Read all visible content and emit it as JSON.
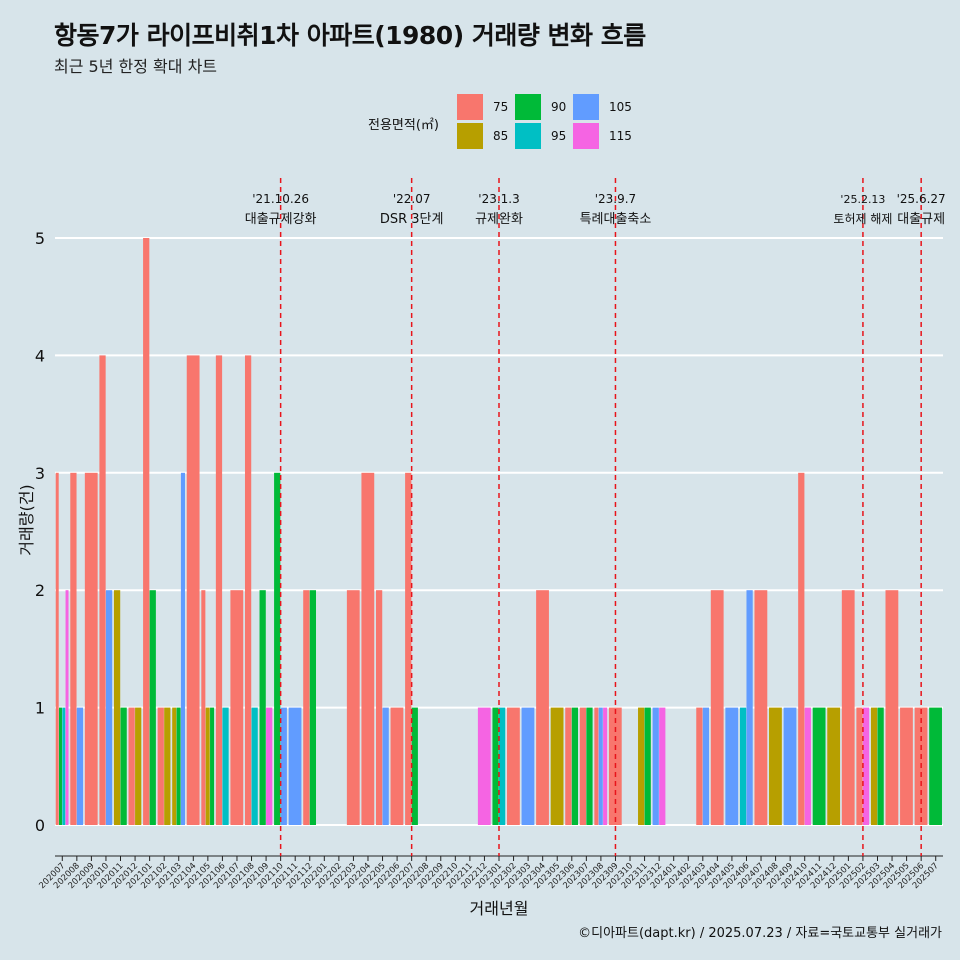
{
  "title": "항동7가 라이프비취1차 아파트(1980) 거래량 변화 흐름",
  "subtitle": "최근 5년 한정 확대 차트",
  "caption": "©디아파트(dapt.kr) / 2025.07.23 / 자료=국토교통부 실거래가",
  "legend": {
    "title": "전용면적(㎡)",
    "items": [
      {
        "label": "75",
        "color": "#f8766d"
      },
      {
        "label": "85",
        "color": "#b79f00"
      },
      {
        "label": "90",
        "color": "#00ba38"
      },
      {
        "label": "95",
        "color": "#00bfc4"
      },
      {
        "label": "105",
        "color": "#619cff"
      },
      {
        "label": "115",
        "color": "#f564e3"
      }
    ]
  },
  "chart_data": {
    "type": "bar",
    "title": "항동7가 라이프비취1차 아파트(1980) 거래량 변화 흐름",
    "subtitle": "최근 5년 한정 확대 차트",
    "xlabel": "거래년월",
    "ylabel": "거래량(건)",
    "ylim": [
      0,
      5.4
    ],
    "yticks": [
      0,
      1,
      2,
      3,
      4,
      5
    ],
    "categories": [
      "202007",
      "202008",
      "202009",
      "202010",
      "202011",
      "202012",
      "202101",
      "202102",
      "202103",
      "202104",
      "202105",
      "202106",
      "202107",
      "202108",
      "202109",
      "202110",
      "202111",
      "202112",
      "202201",
      "202202",
      "202203",
      "202204",
      "202205",
      "202206",
      "202207",
      "202208",
      "202209",
      "202210",
      "202211",
      "202212",
      "202301",
      "202302",
      "202303",
      "202304",
      "202305",
      "202306",
      "202307",
      "202308",
      "202309",
      "202310",
      "202311",
      "202312",
      "202401",
      "202402",
      "202403",
      "202404",
      "202405",
      "202406",
      "202407",
      "202408",
      "202409",
      "202410",
      "202411",
      "202412",
      "202501",
      "202502",
      "202503",
      "202504",
      "202505",
      "202506",
      "202507"
    ],
    "series": [
      {
        "name": "75",
        "color": "#f8766d",
        "values": [
          3,
          3,
          3,
          4,
          0,
          1,
          5,
          1,
          0,
          4,
          2,
          4,
          2,
          4,
          0,
          0,
          0,
          2,
          0,
          0,
          2,
          3,
          2,
          1,
          3,
          0,
          0,
          0,
          0,
          0,
          0,
          1,
          0,
          2,
          0,
          1,
          1,
          1,
          1,
          0,
          0,
          0,
          0,
          0,
          1,
          2,
          0,
          0,
          2,
          0,
          0,
          3,
          0,
          0,
          2,
          1,
          0,
          2,
          1,
          1,
          0
        ]
      },
      {
        "name": "85",
        "color": "#b79f00",
        "values": [
          0,
          0,
          0,
          0,
          2,
          1,
          0,
          1,
          1,
          0,
          1,
          0,
          0,
          0,
          0,
          0,
          0,
          0,
          0,
          0,
          0,
          0,
          0,
          0,
          0,
          0,
          0,
          0,
          0,
          0,
          0,
          0,
          0,
          0,
          1,
          0,
          0,
          0,
          0,
          0,
          1,
          0,
          0,
          0,
          0,
          0,
          0,
          0,
          0,
          1,
          0,
          0,
          0,
          1,
          0,
          0,
          1,
          0,
          0,
          0,
          0
        ]
      },
      {
        "name": "90",
        "color": "#00ba38",
        "values": [
          1,
          0,
          0,
          0,
          1,
          0,
          2,
          0,
          1,
          0,
          1,
          0,
          0,
          0,
          2,
          3,
          0,
          2,
          0,
          0,
          0,
          0,
          0,
          0,
          1,
          0,
          0,
          0,
          0,
          0,
          1,
          0,
          0,
          0,
          0,
          1,
          1,
          0,
          0,
          0,
          1,
          0,
          0,
          0,
          0,
          0,
          0,
          0,
          0,
          0,
          0,
          0,
          1,
          0,
          0,
          0,
          1,
          0,
          0,
          0,
          1
        ]
      },
      {
        "name": "95",
        "color": "#00bfc4",
        "values": [
          1,
          0,
          0,
          0,
          0,
          0,
          0,
          0,
          0,
          0,
          0,
          1,
          0,
          1,
          0,
          0,
          0,
          0,
          0,
          0,
          0,
          0,
          0,
          0,
          0,
          0,
          0,
          0,
          0,
          0,
          1,
          0,
          0,
          0,
          0,
          0,
          0,
          0,
          0,
          0,
          0,
          0,
          0,
          0,
          0,
          0,
          0,
          1,
          0,
          0,
          0,
          0,
          0,
          0,
          0,
          0,
          0,
          0,
          0,
          0,
          0
        ]
      },
      {
        "name": "105",
        "color": "#619cff",
        "values": [
          0,
          1,
          0,
          2,
          0,
          0,
          0,
          0,
          3,
          0,
          0,
          0,
          0,
          0,
          0,
          1,
          1,
          0,
          0,
          0,
          0,
          0,
          1,
          0,
          0,
          0,
          0,
          0,
          0,
          0,
          0,
          0,
          1,
          0,
          0,
          0,
          0,
          1,
          0,
          0,
          0,
          1,
          0,
          0,
          1,
          0,
          1,
          2,
          0,
          0,
          1,
          0,
          0,
          0,
          0,
          0,
          0,
          0,
          0,
          0,
          0
        ]
      },
      {
        "name": "115",
        "color": "#f564e3",
        "values": [
          2,
          0,
          0,
          0,
          0,
          0,
          0,
          0,
          0,
          0,
          0,
          0,
          0,
          0,
          1,
          0,
          0,
          0,
          0,
          0,
          0,
          0,
          0,
          0,
          0,
          0,
          0,
          0,
          0,
          1,
          0,
          0,
          0,
          0,
          0,
          0,
          0,
          1,
          0,
          0,
          0,
          1,
          0,
          0,
          0,
          0,
          0,
          0,
          0,
          0,
          0,
          1,
          0,
          0,
          0,
          1,
          0,
          0,
          0,
          0,
          0
        ]
      }
    ],
    "annotations": [
      {
        "date": "'21.10.26",
        "text": "대출규제강화",
        "x_month": "202110"
      },
      {
        "date": "'22.07",
        "text": "DSR 3단계",
        "x_month": "202207"
      },
      {
        "date": "'23.1.3",
        "text": "규제완화",
        "x_month": "202301"
      },
      {
        "date": "'23.9.7",
        "text": "특례대출축소",
        "x_month": "202309"
      },
      {
        "date": "'25.2.13",
        "text": "토허제 해제",
        "x_month": "202502"
      },
      {
        "date": "'25.6.27",
        "text": "대출규제",
        "x_month": "202506"
      }
    ]
  }
}
